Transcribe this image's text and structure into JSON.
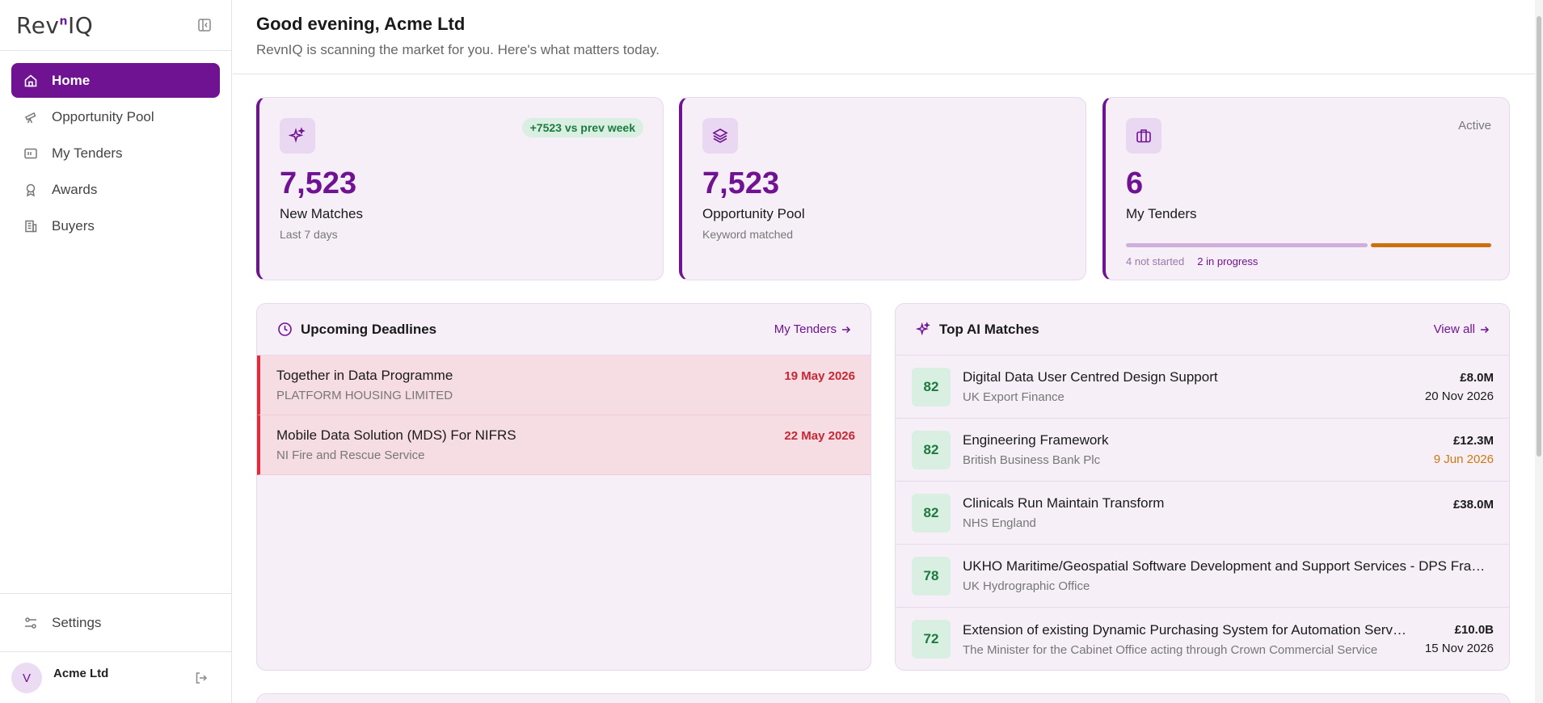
{
  "app": {
    "logo_text": "Rev",
    "logo_sup": "n",
    "logo_end": "IQ"
  },
  "sidebar": {
    "items": [
      {
        "label": "Home",
        "icon": "home-icon",
        "active": true
      },
      {
        "label": "Opportunity Pool",
        "icon": "telescope-icon"
      },
      {
        "label": "My Tenders",
        "icon": "folder-icon"
      },
      {
        "label": "Awards",
        "icon": "award-icon"
      },
      {
        "label": "Buyers",
        "icon": "building-icon"
      }
    ],
    "settings_label": "Settings",
    "user": {
      "initial": "V",
      "name": "Acme Ltd"
    }
  },
  "header": {
    "greeting": "Good evening, Acme Ltd",
    "subtitle": "RevnIQ is scanning the market for you. Here's what matters today."
  },
  "stats": {
    "new_matches": {
      "value": "7,523",
      "title": "New Matches",
      "sub": "Last 7 days",
      "badge": "+7523 vs prev week"
    },
    "opportunity_pool": {
      "value": "7,523",
      "title": "Opportunity Pool",
      "sub": "Keyword matched"
    },
    "my_tenders": {
      "value": "6",
      "title": "My Tenders",
      "status": "Active",
      "not_started": "4 not started",
      "in_progress": "2 in progress",
      "not_started_fraction": 0.667,
      "in_progress_fraction": 0.333
    }
  },
  "deadlines": {
    "title": "Upcoming Deadlines",
    "link": "My Tenders",
    "items": [
      {
        "title": "Together in Data Programme",
        "org": "PLATFORM HOUSING LIMITED",
        "date": "19 May 2026"
      },
      {
        "title": "Mobile Data Solution (MDS) For NIFRS",
        "org": "NI Fire and Rescue Service",
        "date": "22 May 2026"
      }
    ]
  },
  "matches": {
    "title": "Top AI Matches",
    "link": "View all",
    "items": [
      {
        "score": "82",
        "title": "Digital Data User Centred Design Support",
        "org": "UK Export Finance",
        "value": "£8.0M",
        "date": "20 Nov 2026"
      },
      {
        "score": "82",
        "title": "Engineering Framework",
        "org": "British Business Bank Plc",
        "value": "£12.3M",
        "date": "9 Jun 2026"
      },
      {
        "score": "82",
        "title": "Clinicals Run Maintain Transform",
        "org": "NHS England",
        "value": "£38.0M",
        "date": ""
      },
      {
        "score": "78",
        "title": "UKHO Maritime/Geospatial Software Development and Support Services - DPS Framework",
        "org": "UK Hydrographic Office",
        "value": "",
        "date": ""
      },
      {
        "score": "72",
        "title": "Extension of existing Dynamic Purchasing System for Automation Services",
        "org": "The Minister for the Cabinet Office acting through Crown Commercial Service",
        "value": "£10.0B",
        "date": "15 Nov 2026"
      }
    ]
  },
  "colors": {
    "brand": "#6f1392",
    "urgent": "#e02d3c",
    "warning": "#cc7a0d",
    "positive": "#1d7a3e"
  }
}
